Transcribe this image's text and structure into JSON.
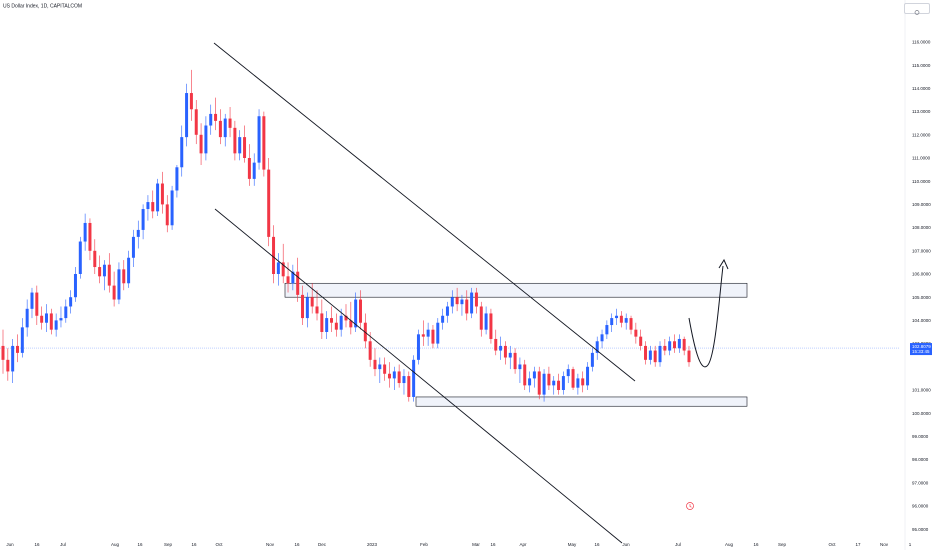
{
  "header": {
    "title": "US Dollar Index, 1D, CAPITALCOM"
  },
  "price_badge": {
    "price": "102.8079",
    "countdown": "15:33:45"
  },
  "toolbar": {
    "settings_icon": "settings-icon"
  },
  "footer": {
    "replay_icon": "replay-icon"
  },
  "colors": {
    "up_candle": "#2962ff",
    "down_candle": "#f23645",
    "drawing": "#131722",
    "price_line": "#2962ff",
    "axis_text": "#131722",
    "zone_fill": "#f0f3fa"
  },
  "chart_data": {
    "type": "candlestick",
    "title": "US Dollar Index, 1D, CAPITALCOM",
    "ylim": [
      93.6,
      116.3
    ],
    "y_ticks": [
      "116.0000",
      "115.0000",
      "114.0000",
      "113.0000",
      "112.0000",
      "111.0000",
      "110.0000",
      "109.0000",
      "108.0000",
      "107.0000",
      "106.0000",
      "105.0000",
      "104.0000",
      "103.0000",
      "101.0000",
      "100.0000",
      "99.0000",
      "98.0000",
      "97.0000",
      "96.0000",
      "95.0000",
      "94.0000"
    ],
    "x_ticks": [
      "Jun",
      "16",
      "Jul",
      "Aug",
      "16",
      "Sep",
      "16",
      "Oct",
      "Nov",
      "16",
      "Dec",
      "2023",
      "Feb",
      "Mar",
      "16",
      "Apr",
      "May",
      "16",
      "Jun",
      "Jul",
      "Aug",
      "16",
      "Sep",
      "Oct",
      "17",
      "Nov",
      "1"
    ],
    "last_price": 102.8079,
    "series": [
      {
        "candles": [
          {
            "o": 102.9,
            "h": 103.6,
            "l": 101.7,
            "c": 102.3
          },
          {
            "o": 102.3,
            "h": 102.8,
            "l": 101.4,
            "c": 101.8
          },
          {
            "o": 101.8,
            "h": 103.2,
            "l": 101.3,
            "c": 102.9
          },
          {
            "o": 102.9,
            "h": 103.4,
            "l": 102.2,
            "c": 102.6
          },
          {
            "o": 102.6,
            "h": 104.1,
            "l": 102.4,
            "c": 103.7
          },
          {
            "o": 103.7,
            "h": 104.9,
            "l": 103.3,
            "c": 104.5
          },
          {
            "o": 104.5,
            "h": 105.4,
            "l": 104.1,
            "c": 105.2
          },
          {
            "o": 105.2,
            "h": 105.5,
            "l": 103.8,
            "c": 104.2
          },
          {
            "o": 104.2,
            "h": 104.6,
            "l": 103.6,
            "c": 103.9
          },
          {
            "o": 103.9,
            "h": 104.7,
            "l": 103.5,
            "c": 104.3
          },
          {
            "o": 104.3,
            "h": 104.5,
            "l": 103.4,
            "c": 103.6
          },
          {
            "o": 103.6,
            "h": 104.3,
            "l": 103.3,
            "c": 104.0
          },
          {
            "o": 104.0,
            "h": 104.6,
            "l": 103.7,
            "c": 104.1
          },
          {
            "o": 104.1,
            "h": 104.9,
            "l": 103.9,
            "c": 104.6
          },
          {
            "o": 104.6,
            "h": 105.3,
            "l": 104.3,
            "c": 105.0
          },
          {
            "o": 105.0,
            "h": 106.3,
            "l": 104.8,
            "c": 106.0
          },
          {
            "o": 106.0,
            "h": 107.6,
            "l": 105.8,
            "c": 107.4
          },
          {
            "o": 107.4,
            "h": 108.6,
            "l": 107.0,
            "c": 108.2
          },
          {
            "o": 108.2,
            "h": 108.4,
            "l": 106.6,
            "c": 107.0
          },
          {
            "o": 107.0,
            "h": 107.5,
            "l": 106.0,
            "c": 106.3
          },
          {
            "o": 106.3,
            "h": 106.8,
            "l": 105.6,
            "c": 105.9
          },
          {
            "o": 105.9,
            "h": 106.6,
            "l": 105.3,
            "c": 106.4
          },
          {
            "o": 106.4,
            "h": 106.9,
            "l": 105.2,
            "c": 105.5
          },
          {
            "o": 105.5,
            "h": 106.1,
            "l": 104.6,
            "c": 104.9
          },
          {
            "o": 104.9,
            "h": 106.5,
            "l": 104.7,
            "c": 106.2
          },
          {
            "o": 106.2,
            "h": 106.6,
            "l": 105.3,
            "c": 105.6
          },
          {
            "o": 105.6,
            "h": 107.0,
            "l": 105.4,
            "c": 106.7
          },
          {
            "o": 106.7,
            "h": 107.9,
            "l": 106.3,
            "c": 107.6
          },
          {
            "o": 107.6,
            "h": 108.3,
            "l": 107.1,
            "c": 107.9
          },
          {
            "o": 107.9,
            "h": 109.0,
            "l": 107.5,
            "c": 108.8
          },
          {
            "o": 108.8,
            "h": 109.4,
            "l": 108.3,
            "c": 109.1
          },
          {
            "o": 109.1,
            "h": 109.6,
            "l": 108.4,
            "c": 108.7
          },
          {
            "o": 108.7,
            "h": 110.1,
            "l": 108.5,
            "c": 109.9
          },
          {
            "o": 109.9,
            "h": 110.4,
            "l": 108.6,
            "c": 109.0
          },
          {
            "o": 109.0,
            "h": 109.4,
            "l": 107.8,
            "c": 108.1
          },
          {
            "o": 108.1,
            "h": 109.8,
            "l": 107.9,
            "c": 109.6
          },
          {
            "o": 109.6,
            "h": 110.7,
            "l": 109.3,
            "c": 110.6
          },
          {
            "o": 110.6,
            "h": 112.4,
            "l": 110.2,
            "c": 111.9
          },
          {
            "o": 111.9,
            "h": 114.2,
            "l": 111.5,
            "c": 113.8
          },
          {
            "o": 113.8,
            "h": 114.8,
            "l": 112.6,
            "c": 113.1
          },
          {
            "o": 113.1,
            "h": 113.5,
            "l": 111.6,
            "c": 112.0
          },
          {
            "o": 112.0,
            "h": 112.5,
            "l": 110.7,
            "c": 111.2
          },
          {
            "o": 111.2,
            "h": 112.8,
            "l": 110.9,
            "c": 112.4
          },
          {
            "o": 112.4,
            "h": 113.3,
            "l": 112.0,
            "c": 112.9
          },
          {
            "o": 112.9,
            "h": 113.6,
            "l": 112.2,
            "c": 112.6
          },
          {
            "o": 112.6,
            "h": 113.1,
            "l": 111.6,
            "c": 111.9
          },
          {
            "o": 111.9,
            "h": 112.9,
            "l": 111.5,
            "c": 112.7
          },
          {
            "o": 112.7,
            "h": 113.2,
            "l": 111.9,
            "c": 112.3
          },
          {
            "o": 112.3,
            "h": 112.6,
            "l": 110.9,
            "c": 111.2
          },
          {
            "o": 111.2,
            "h": 112.2,
            "l": 110.9,
            "c": 111.9
          },
          {
            "o": 111.9,
            "h": 112.4,
            "l": 110.8,
            "c": 111.0
          },
          {
            "o": 111.0,
            "h": 111.6,
            "l": 109.8,
            "c": 110.1
          },
          {
            "o": 110.1,
            "h": 111.2,
            "l": 109.8,
            "c": 110.8
          },
          {
            "o": 110.8,
            "h": 113.1,
            "l": 110.5,
            "c": 112.8
          },
          {
            "o": 112.8,
            "h": 113.0,
            "l": 110.2,
            "c": 110.5
          },
          {
            "o": 110.5,
            "h": 111.0,
            "l": 107.2,
            "c": 107.6
          },
          {
            "o": 107.6,
            "h": 108.1,
            "l": 105.6,
            "c": 106.0
          },
          {
            "o": 106.0,
            "h": 106.9,
            "l": 105.5,
            "c": 106.5
          },
          {
            "o": 106.5,
            "h": 107.3,
            "l": 105.6,
            "c": 105.9
          },
          {
            "o": 105.9,
            "h": 106.5,
            "l": 105.2,
            "c": 105.6
          },
          {
            "o": 105.6,
            "h": 106.4,
            "l": 105.3,
            "c": 106.1
          },
          {
            "o": 106.1,
            "h": 106.7,
            "l": 104.8,
            "c": 105.1
          },
          {
            "o": 105.1,
            "h": 105.5,
            "l": 103.8,
            "c": 104.1
          },
          {
            "o": 104.1,
            "h": 105.2,
            "l": 103.7,
            "c": 105.0
          },
          {
            "o": 105.0,
            "h": 105.6,
            "l": 104.3,
            "c": 104.6
          },
          {
            "o": 104.6,
            "h": 105.3,
            "l": 104.0,
            "c": 104.3
          },
          {
            "o": 104.3,
            "h": 104.9,
            "l": 103.2,
            "c": 103.5
          },
          {
            "o": 103.5,
            "h": 104.4,
            "l": 103.2,
            "c": 104.1
          },
          {
            "o": 104.1,
            "h": 104.6,
            "l": 103.5,
            "c": 103.9
          },
          {
            "o": 103.9,
            "h": 104.3,
            "l": 103.3,
            "c": 103.6
          },
          {
            "o": 103.6,
            "h": 104.5,
            "l": 103.3,
            "c": 104.2
          },
          {
            "o": 104.2,
            "h": 104.7,
            "l": 103.7,
            "c": 104.0
          },
          {
            "o": 104.0,
            "h": 104.8,
            "l": 103.4,
            "c": 103.7
          },
          {
            "o": 103.7,
            "h": 105.2,
            "l": 103.5,
            "c": 104.9
          },
          {
            "o": 104.9,
            "h": 105.3,
            "l": 103.6,
            "c": 103.9
          },
          {
            "o": 103.9,
            "h": 104.3,
            "l": 102.8,
            "c": 103.1
          },
          {
            "o": 103.1,
            "h": 103.5,
            "l": 102.0,
            "c": 102.3
          },
          {
            "o": 102.3,
            "h": 102.8,
            "l": 101.6,
            "c": 101.9
          },
          {
            "o": 101.9,
            "h": 102.4,
            "l": 101.3,
            "c": 102.1
          },
          {
            "o": 102.1,
            "h": 102.4,
            "l": 101.4,
            "c": 101.7
          },
          {
            "o": 101.7,
            "h": 102.2,
            "l": 101.1,
            "c": 101.5
          },
          {
            "o": 101.5,
            "h": 102.0,
            "l": 101.0,
            "c": 101.8
          },
          {
            "o": 101.8,
            "h": 102.1,
            "l": 101.1,
            "c": 101.3
          },
          {
            "o": 101.3,
            "h": 101.9,
            "l": 100.8,
            "c": 101.6
          },
          {
            "o": 101.6,
            "h": 101.8,
            "l": 100.5,
            "c": 100.7
          },
          {
            "o": 100.7,
            "h": 102.5,
            "l": 100.5,
            "c": 102.3
          },
          {
            "o": 102.3,
            "h": 103.6,
            "l": 102.1,
            "c": 103.4
          },
          {
            "o": 103.4,
            "h": 104.0,
            "l": 102.9,
            "c": 103.3
          },
          {
            "o": 103.3,
            "h": 103.9,
            "l": 102.9,
            "c": 103.6
          },
          {
            "o": 103.6,
            "h": 103.8,
            "l": 102.8,
            "c": 103.0
          },
          {
            "o": 103.0,
            "h": 104.1,
            "l": 102.8,
            "c": 103.9
          },
          {
            "o": 103.9,
            "h": 104.5,
            "l": 103.6,
            "c": 104.2
          },
          {
            "o": 104.2,
            "h": 104.8,
            "l": 103.9,
            "c": 104.6
          },
          {
            "o": 104.6,
            "h": 105.3,
            "l": 104.3,
            "c": 105.0
          },
          {
            "o": 105.0,
            "h": 105.4,
            "l": 104.4,
            "c": 104.7
          },
          {
            "o": 104.7,
            "h": 105.1,
            "l": 104.2,
            "c": 104.9
          },
          {
            "o": 104.9,
            "h": 105.3,
            "l": 104.0,
            "c": 104.3
          },
          {
            "o": 104.3,
            "h": 105.4,
            "l": 104.1,
            "c": 105.2
          },
          {
            "o": 105.2,
            "h": 105.4,
            "l": 104.3,
            "c": 104.6
          },
          {
            "o": 104.6,
            "h": 104.8,
            "l": 103.3,
            "c": 103.6
          },
          {
            "o": 103.6,
            "h": 104.6,
            "l": 103.4,
            "c": 104.3
          },
          {
            "o": 104.3,
            "h": 104.5,
            "l": 103.0,
            "c": 103.2
          },
          {
            "o": 103.2,
            "h": 103.6,
            "l": 102.5,
            "c": 102.7
          },
          {
            "o": 102.7,
            "h": 103.3,
            "l": 102.3,
            "c": 102.9
          },
          {
            "o": 102.9,
            "h": 103.1,
            "l": 102.1,
            "c": 102.4
          },
          {
            "o": 102.4,
            "h": 102.9,
            "l": 101.9,
            "c": 102.6
          },
          {
            "o": 102.6,
            "h": 102.8,
            "l": 101.7,
            "c": 101.9
          },
          {
            "o": 101.9,
            "h": 102.4,
            "l": 101.3,
            "c": 102.1
          },
          {
            "o": 102.1,
            "h": 102.3,
            "l": 101.0,
            "c": 101.2
          },
          {
            "o": 101.2,
            "h": 101.8,
            "l": 100.9,
            "c": 101.5
          },
          {
            "o": 101.5,
            "h": 102.0,
            "l": 101.1,
            "c": 101.8
          },
          {
            "o": 101.8,
            "h": 102.0,
            "l": 100.6,
            "c": 100.8
          },
          {
            "o": 100.8,
            "h": 101.9,
            "l": 100.5,
            "c": 101.7
          },
          {
            "o": 101.7,
            "h": 102.0,
            "l": 101.0,
            "c": 101.2
          },
          {
            "o": 101.2,
            "h": 101.6,
            "l": 100.8,
            "c": 101.4
          },
          {
            "o": 101.4,
            "h": 101.7,
            "l": 100.8,
            "c": 101.0
          },
          {
            "o": 101.0,
            "h": 101.8,
            "l": 100.8,
            "c": 101.6
          },
          {
            "o": 101.6,
            "h": 102.1,
            "l": 101.3,
            "c": 101.9
          },
          {
            "o": 101.9,
            "h": 102.0,
            "l": 101.0,
            "c": 101.1
          },
          {
            "o": 101.1,
            "h": 101.7,
            "l": 100.8,
            "c": 101.5
          },
          {
            "o": 101.5,
            "h": 101.8,
            "l": 100.9,
            "c": 101.2
          },
          {
            "o": 101.2,
            "h": 102.2,
            "l": 101.0,
            "c": 102.0
          },
          {
            "o": 102.0,
            "h": 102.8,
            "l": 101.8,
            "c": 102.6
          },
          {
            "o": 102.6,
            "h": 103.3,
            "l": 102.3,
            "c": 103.1
          },
          {
            "o": 103.1,
            "h": 103.6,
            "l": 102.8,
            "c": 103.4
          },
          {
            "o": 103.4,
            "h": 104.0,
            "l": 103.2,
            "c": 103.8
          },
          {
            "o": 103.8,
            "h": 104.3,
            "l": 103.5,
            "c": 104.1
          },
          {
            "o": 104.1,
            "h": 104.5,
            "l": 103.8,
            "c": 104.2
          },
          {
            "o": 104.2,
            "h": 104.4,
            "l": 103.7,
            "c": 103.9
          },
          {
            "o": 103.9,
            "h": 104.3,
            "l": 103.6,
            "c": 104.1
          },
          {
            "o": 104.1,
            "h": 104.2,
            "l": 103.4,
            "c": 103.6
          },
          {
            "o": 103.6,
            "h": 103.9,
            "l": 103.0,
            "c": 103.3
          },
          {
            "o": 103.3,
            "h": 103.6,
            "l": 102.7,
            "c": 102.9
          },
          {
            "o": 102.9,
            "h": 103.1,
            "l": 102.1,
            "c": 102.3
          },
          {
            "o": 102.3,
            "h": 102.9,
            "l": 102.1,
            "c": 102.7
          },
          {
            "o": 102.7,
            "h": 102.9,
            "l": 102.0,
            "c": 102.2
          },
          {
            "o": 102.2,
            "h": 103.1,
            "l": 102.0,
            "c": 102.9
          },
          {
            "o": 102.9,
            "h": 103.2,
            "l": 102.5,
            "c": 102.7
          },
          {
            "o": 102.7,
            "h": 103.3,
            "l": 102.5,
            "c": 103.1
          },
          {
            "o": 103.1,
            "h": 103.4,
            "l": 102.6,
            "c": 102.8
          },
          {
            "o": 102.8,
            "h": 103.4,
            "l": 102.6,
            "c": 103.2
          },
          {
            "o": 103.2,
            "h": 103.3,
            "l": 102.5,
            "c": 102.7
          },
          {
            "o": 102.7,
            "h": 102.9,
            "l": 102.0,
            "c": 102.2
          }
        ]
      }
    ]
  }
}
